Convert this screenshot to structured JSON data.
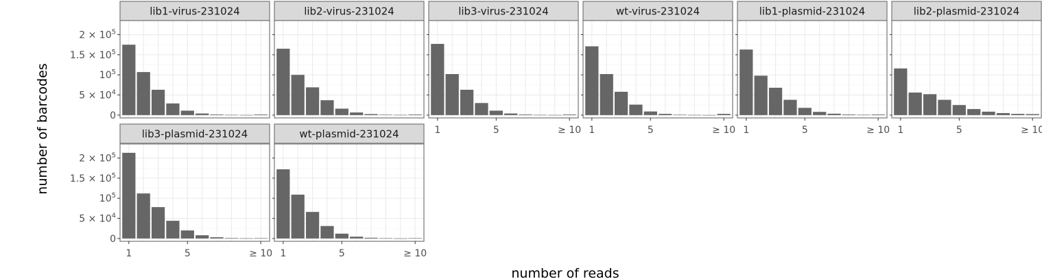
{
  "chart_data": {
    "type": "bar",
    "xlabel": "number of reads",
    "ylabel": "number of barcodes",
    "ylim": [
      -7000,
      235000
    ],
    "xlim": [
      0.4,
      10.6
    ],
    "categories": [
      1,
      2,
      3,
      4,
      5,
      6,
      7,
      8,
      9,
      10
    ],
    "x_tick_values": [
      1,
      5,
      10
    ],
    "x_tick_labels": [
      "1",
      "5",
      "≥ 10"
    ],
    "y_ticks": [
      {
        "value": 0,
        "mantissa": "0",
        "exp": ""
      },
      {
        "value": 50000,
        "mantissa": "5 × 10",
        "exp": "4"
      },
      {
        "value": 100000,
        "mantissa": "10",
        "exp": "5"
      },
      {
        "value": 150000,
        "mantissa": "1.5 × 10",
        "exp": "5"
      },
      {
        "value": 200000,
        "mantissa": "2 × 10",
        "exp": "5"
      }
    ],
    "grid": true,
    "bar_color": "#666666",
    "panels": [
      {
        "name": "lib1-virus-231024",
        "values": [
          175000,
          107000,
          63000,
          29000,
          11000,
          4000,
          1500,
          600,
          300,
          1500
        ]
      },
      {
        "name": "lib2-virus-231024",
        "values": [
          165000,
          100000,
          69000,
          37000,
          16000,
          6500,
          2500,
          1000,
          500,
          1500
        ]
      },
      {
        "name": "lib3-virus-231024",
        "values": [
          177000,
          102000,
          63000,
          30000,
          11000,
          4000,
          1500,
          600,
          300,
          1500
        ]
      },
      {
        "name": "wt-virus-231024",
        "values": [
          171000,
          102000,
          58000,
          26000,
          9000,
          3000,
          1000,
          400,
          200,
          3000
        ]
      },
      {
        "name": "lib1-plasmid-231024",
        "values": [
          163000,
          98000,
          68000,
          38000,
          18000,
          8000,
          3500,
          1500,
          800,
          1500
        ]
      },
      {
        "name": "lib2-plasmid-231024",
        "values": [
          116000,
          56000,
          52000,
          38000,
          25000,
          15000,
          8500,
          5000,
          3000,
          2500
        ]
      },
      {
        "name": "lib3-plasmid-231024",
        "values": [
          213000,
          112000,
          78000,
          44000,
          20000,
          8000,
          3000,
          1200,
          500,
          1000
        ]
      },
      {
        "name": "wt-plasmid-231024",
        "values": [
          172000,
          109000,
          66000,
          31000,
          12000,
          4500,
          1800,
          700,
          300,
          800
        ]
      }
    ]
  }
}
